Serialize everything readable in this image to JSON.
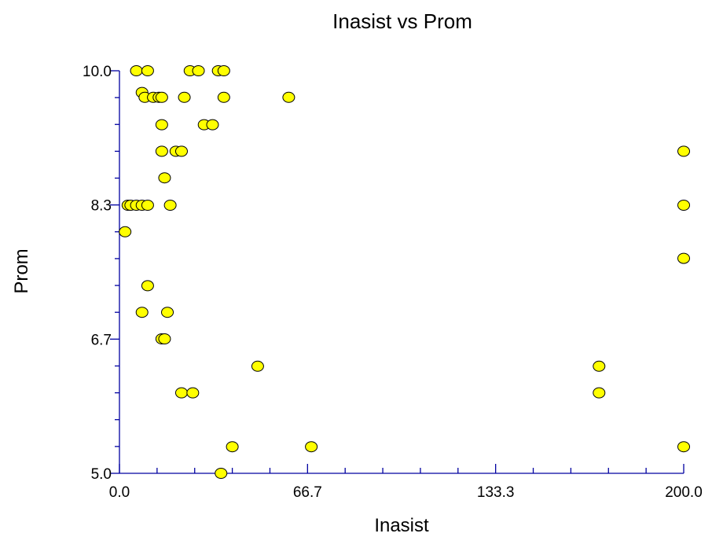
{
  "chart_data": {
    "type": "scatter",
    "title": "Inasist vs Prom",
    "xlabel": "Inasist",
    "ylabel": "Prom",
    "xlim": [
      0,
      200
    ],
    "ylim": [
      5,
      10
    ],
    "x_ticks": [
      "0.0",
      "66.7",
      "133.3",
      "200.0"
    ],
    "y_ticks": [
      "5.0",
      "6.7",
      "8.3",
      "10.0"
    ],
    "grid": false,
    "marker_color": "#ffff00",
    "axis_color": "#0000a0",
    "series": [
      {
        "x": [
          6,
          10,
          25,
          28,
          35,
          37,
          8,
          9,
          12,
          14,
          15,
          23,
          37,
          60,
          15,
          30,
          33,
          15,
          20,
          22,
          16,
          3,
          4,
          6,
          8,
          10,
          18,
          2,
          10,
          8,
          17,
          15,
          16,
          49,
          22,
          26,
          40,
          68,
          36,
          200,
          200,
          200,
          170,
          170,
          200
        ],
        "y": [
          10.0,
          10.0,
          10.0,
          10.0,
          10.0,
          10.0,
          9.73,
          9.67,
          9.67,
          9.67,
          9.67,
          9.67,
          9.67,
          9.67,
          9.33,
          9.33,
          9.33,
          9.0,
          9.0,
          9.0,
          8.67,
          8.33,
          8.33,
          8.33,
          8.33,
          8.33,
          8.33,
          8.0,
          7.33,
          7.0,
          7.0,
          6.67,
          6.67,
          6.33,
          6.0,
          6.0,
          5.33,
          5.33,
          5.0,
          9.0,
          8.33,
          7.67,
          6.33,
          6.0,
          5.33
        ]
      }
    ]
  }
}
